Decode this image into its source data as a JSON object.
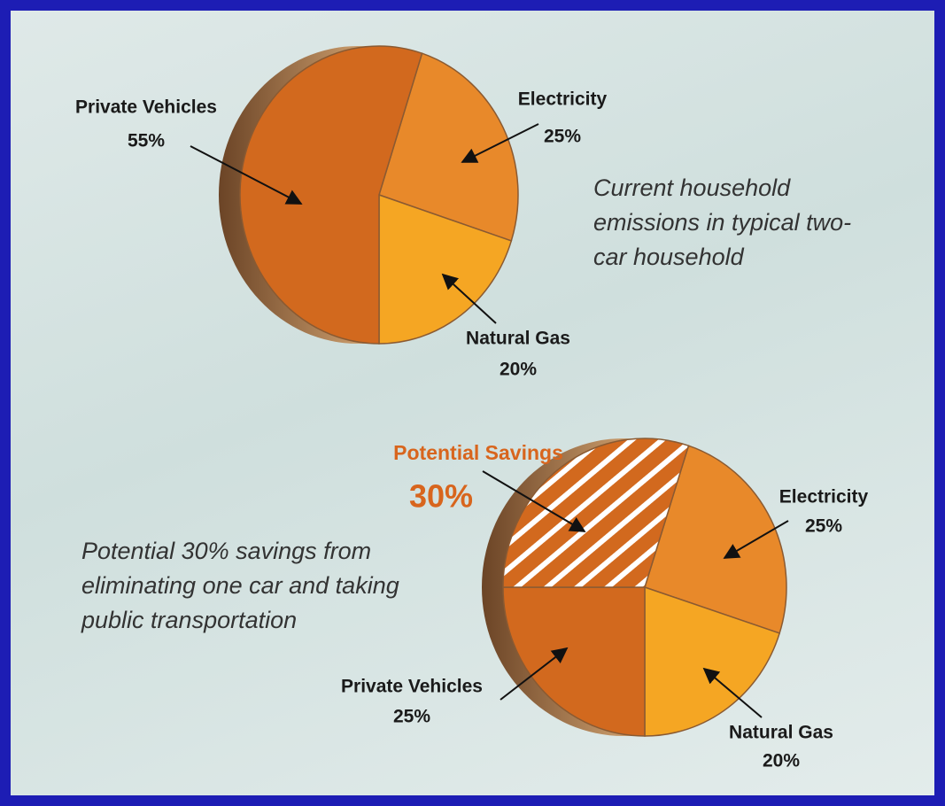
{
  "chart_data": [
    {
      "type": "pie",
      "categories": [
        "Electricity",
        "Natural Gas",
        "Private Vehicles"
      ],
      "values": [
        25,
        20,
        55
      ],
      "value_labels": [
        "25%",
        "20%",
        "55%"
      ],
      "colors": [
        "#e8892a",
        "#f5a623",
        "#d2691e"
      ],
      "hatched": [
        false,
        false,
        false
      ],
      "annotation": "Current household emissions in typical two-car household"
    },
    {
      "type": "pie",
      "categories": [
        "Electricity",
        "Natural Gas",
        "Private Vehicles",
        "Potential Savings"
      ],
      "values": [
        25,
        20,
        25,
        30
      ],
      "value_labels": [
        "25%",
        "20%",
        "25%",
        "30%"
      ],
      "colors": [
        "#e8892a",
        "#f5a623",
        "#d2691e",
        "#d2691e"
      ],
      "hatched": [
        false,
        false,
        false,
        true
      ],
      "annotation": "Potential 30% savings from eliminating one car and taking public transportation"
    }
  ]
}
